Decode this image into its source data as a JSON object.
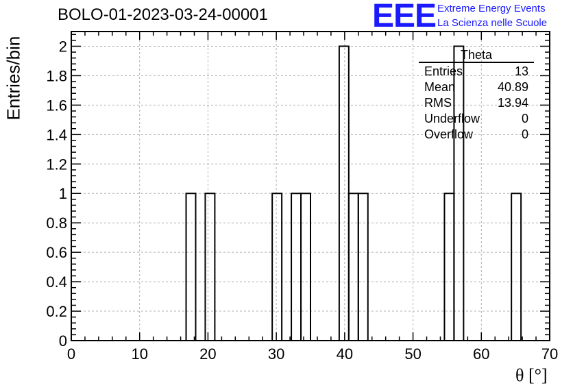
{
  "title": "BOLO-01-2023-03-24-00001",
  "logo": {
    "mark": "EEE",
    "line1": "Extreme Energy Events",
    "line2": "La Scienza nelle Scuole",
    "color": "#1a1aff"
  },
  "stats": {
    "name": "Theta",
    "rows": [
      {
        "label": "Entries",
        "value": "13"
      },
      {
        "label": "Mean",
        "value": "40.89"
      },
      {
        "label": "RMS",
        "value": "13.94"
      },
      {
        "label": "Underflow",
        "value": "0"
      },
      {
        "label": "Overflow",
        "value": "0"
      }
    ]
  },
  "chart_data": {
    "type": "bar",
    "title": "BOLO-01-2023-03-24-00001",
    "xlabel": "θ [°]",
    "ylabel": "Entries/bin",
    "xlim": [
      0,
      70
    ],
    "ylim": [
      0,
      2.1
    ],
    "grid": true,
    "bin_width": 1.4,
    "x_ticks": [
      "0",
      "10",
      "20",
      "30",
      "40",
      "50",
      "60",
      "70"
    ],
    "y_ticks": [
      "0",
      "0.2",
      "0.4",
      "0.6",
      "0.8",
      "1",
      "1.2",
      "1.4",
      "1.6",
      "1.8",
      "2"
    ],
    "bins": [
      {
        "low": 16.8,
        "count": 1
      },
      {
        "low": 19.6,
        "count": 1
      },
      {
        "low": 29.4,
        "count": 1
      },
      {
        "low": 32.2,
        "count": 1
      },
      {
        "low": 33.6,
        "count": 1
      },
      {
        "low": 39.2,
        "count": 2
      },
      {
        "low": 40.6,
        "count": 1
      },
      {
        "low": 42.0,
        "count": 1
      },
      {
        "low": 54.6,
        "count": 1
      },
      {
        "low": 56.0,
        "count": 2
      },
      {
        "low": 64.4,
        "count": 1
      }
    ]
  }
}
